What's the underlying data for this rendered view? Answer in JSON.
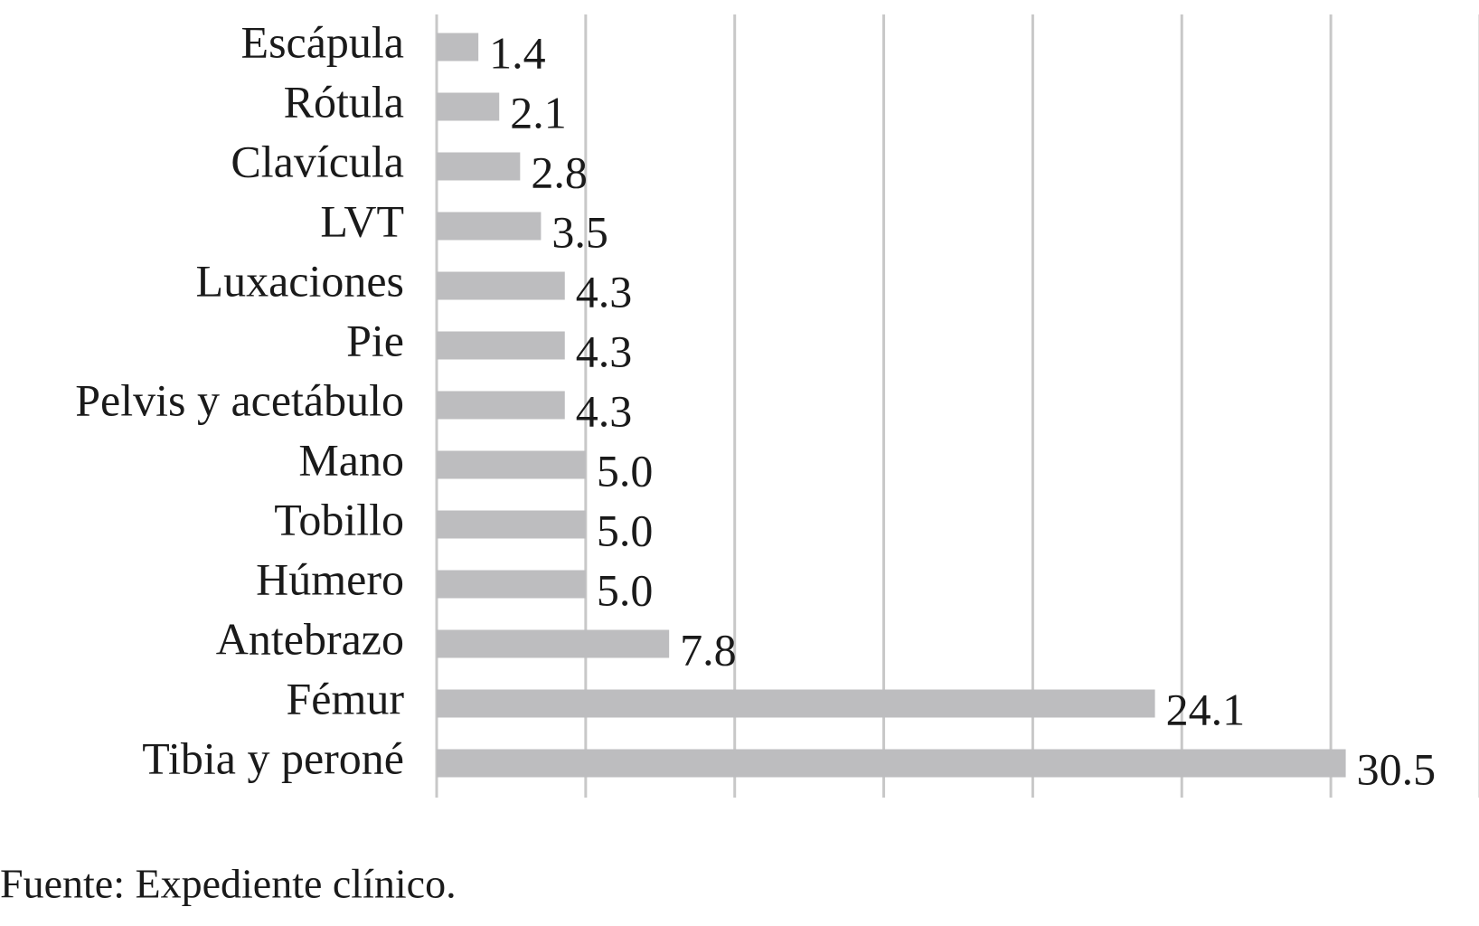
{
  "chart_data": {
    "type": "bar",
    "orientation": "horizontal",
    "categories": [
      "Escápula",
      "Rótula",
      "Clavícula",
      "LVT",
      "Luxaciones",
      "Pie",
      "Pelvis y acetábulo",
      "Mano",
      "Tobillo",
      "Húmero",
      "Antebrazo",
      "Fémur",
      "Tibia y peroné"
    ],
    "values": [
      1.4,
      2.1,
      2.8,
      3.5,
      4.3,
      4.3,
      4.3,
      5.0,
      5.0,
      5.0,
      7.8,
      24.1,
      30.5
    ],
    "value_labels": [
      "1.4",
      "2.1",
      "2.8",
      "3.5",
      "4.3",
      "4.3",
      "4.3",
      "5.0",
      "5.0",
      "5.0",
      "7.8",
      "24.1",
      "30.5"
    ],
    "color": "#bdbdbf",
    "xlim": [
      0,
      35
    ],
    "xticks": [
      0,
      5,
      10,
      15,
      20,
      25,
      30,
      35
    ],
    "grid": true,
    "source": "Fuente: Expediente clínico."
  }
}
